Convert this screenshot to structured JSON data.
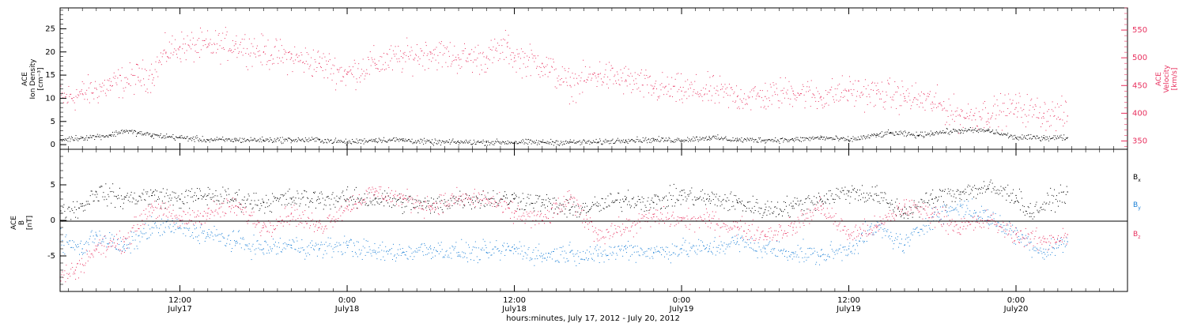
{
  "colors": {
    "density": "#000000",
    "velocity": "#e8315f",
    "bx": "#000000",
    "by": "#1a7fd6",
    "bz": "#e8315f",
    "axis": "#000000"
  },
  "top_panel": {
    "ylabel_left": [
      "ACE",
      "Ion Density",
      "[cm⁻³]"
    ],
    "ylabel_right": [
      "ACE",
      "Velocity",
      "[km/s]"
    ]
  },
  "bottom_panel": {
    "ylabel_left": [
      "ACE",
      "B",
      "[nT]"
    ],
    "legend": [
      "Bx",
      "By",
      "Bz"
    ]
  },
  "x_axis": {
    "title": "hours:minutes, July 17, 2012 - July 20, 2012",
    "ticks": [
      {
        "x": 12,
        "time": "12:00",
        "date": "July17"
      },
      {
        "x": 24,
        "time": "0:00",
        "date": "July18"
      },
      {
        "x": 36,
        "time": "12:00",
        "date": "July18"
      },
      {
        "x": 48,
        "time": "0:00",
        "date": "July19"
      },
      {
        "x": 60,
        "time": "12:00",
        "date": "July19"
      },
      {
        "x": 72,
        "time": "0:00",
        "date": "July20"
      }
    ]
  },
  "chart_data": [
    {
      "type": "scatter",
      "panel": "top",
      "xlim": [
        3.4,
        80
      ],
      "ylim_left": [
        -1,
        29.5
      ],
      "ylim_right": [
        335,
        590
      ],
      "yticks_left": [
        0,
        5,
        10,
        15,
        20,
        25
      ],
      "yticks_right": [
        350,
        400,
        450,
        500,
        550
      ],
      "series": [
        {
          "axis": "left",
          "x": [
            3.4,
            5,
            7,
            8,
            9,
            10,
            12,
            14,
            16,
            18,
            20,
            22,
            24,
            26,
            28,
            30,
            32,
            34,
            36,
            38,
            40,
            42,
            44,
            46,
            48,
            50,
            52,
            54,
            56,
            58,
            60,
            62,
            63,
            65,
            66,
            68,
            70,
            72,
            74,
            75.7
          ],
          "y": [
            1.0,
            1.5,
            2.0,
            3.0,
            2.5,
            2.0,
            1.5,
            1.0,
            1.0,
            1.0,
            1.0,
            1.0,
            0.5,
            1.0,
            1.0,
            0.5,
            0.5,
            0.5,
            0.5,
            0.5,
            0.5,
            0.5,
            1.0,
            1.0,
            1.0,
            1.5,
            1.0,
            1.0,
            1.0,
            1.5,
            1.0,
            2.0,
            2.5,
            2.0,
            2.5,
            3.0,
            3.0,
            1.5,
            1.5,
            1.5
          ]
        },
        {
          "axis": "right",
          "x": [
            3.4,
            5,
            7,
            9,
            10,
            11,
            12,
            14,
            16,
            18,
            20,
            22,
            24,
            26,
            28,
            30,
            32,
            34,
            35.5,
            36,
            38,
            40,
            42,
            44,
            46,
            48,
            50,
            52,
            54,
            56,
            58,
            60,
            62,
            64,
            66,
            68,
            70,
            72,
            74,
            75.7
          ],
          "y": [
            425,
            435,
            450,
            465,
            470,
            510,
            520,
            520,
            525,
            510,
            500,
            490,
            470,
            490,
            500,
            510,
            500,
            500,
            520,
            500,
            490,
            450,
            470,
            460,
            445,
            440,
            440,
            430,
            430,
            440,
            430,
            440,
            435,
            430,
            420,
            395,
            400,
            410,
            400,
            395
          ]
        }
      ]
    },
    {
      "type": "scatter",
      "panel": "bottom",
      "xlim": [
        3.4,
        80
      ],
      "ylim": [
        -10,
        10
      ],
      "yticks": [
        -5,
        0,
        5
      ],
      "series": [
        {
          "name": "Bx",
          "x": [
            3.4,
            5,
            6,
            8,
            10,
            12,
            14,
            16,
            18,
            20,
            22,
            24,
            26,
            28,
            30,
            32,
            34,
            36,
            38,
            40,
            42,
            44,
            46,
            48,
            50,
            52,
            54,
            56,
            58,
            60,
            62,
            64,
            66,
            68,
            70,
            72,
            73,
            75.7
          ],
          "y": [
            1,
            2,
            4,
            3,
            3.5,
            3,
            3.5,
            3,
            2.5,
            3,
            3,
            3,
            3,
            2.5,
            2,
            3,
            3,
            3,
            2.5,
            1.5,
            2,
            3,
            2.5,
            3.5,
            3,
            2.5,
            1.5,
            2,
            3,
            4,
            3.5,
            1,
            3,
            4,
            4.5,
            3.5,
            1,
            4
          ]
        },
        {
          "name": "By",
          "x": [
            3.4,
            5,
            6,
            8,
            10,
            12,
            14,
            16,
            18,
            20,
            22,
            24,
            26,
            28,
            30,
            32,
            34,
            36,
            38,
            40,
            42,
            44,
            46,
            48,
            50,
            52,
            54,
            56,
            58,
            60,
            62,
            64,
            66,
            68,
            70,
            72,
            74,
            75.7
          ],
          "y": [
            -3,
            -4,
            -2,
            -4,
            -1,
            -1,
            -2,
            -3,
            -4,
            -3.5,
            -4,
            -3.5,
            -4.5,
            -4.5,
            -4,
            -4.5,
            -4.5,
            -4,
            -5,
            -4.5,
            -5,
            -4,
            -4.5,
            -4,
            -4,
            -3,
            -4,
            -4.5,
            -5,
            -4,
            -1,
            -3.5,
            0.5,
            2,
            0.5,
            -2,
            -4.5,
            -3
          ]
        },
        {
          "name": "Bz",
          "x": [
            3.4,
            4.5,
            6,
            8,
            10,
            12,
            14,
            16,
            18,
            20,
            22,
            24,
            26,
            28,
            30,
            32,
            34,
            36,
            38,
            40,
            42,
            44,
            46,
            48,
            50,
            52,
            54,
            56,
            58,
            60,
            62,
            64,
            66,
            68,
            70,
            72,
            74,
            75.7
          ],
          "y": [
            -8,
            -7,
            -4,
            -3,
            2,
            0,
            1,
            2,
            -1,
            1,
            -1,
            2,
            4,
            3,
            2,
            3,
            3,
            1,
            0,
            3,
            -2,
            -1,
            0.5,
            0,
            0,
            -1,
            -2,
            -1,
            2,
            -2,
            -1,
            2,
            1,
            -1,
            0,
            -2,
            -3,
            -2
          ]
        }
      ]
    }
  ]
}
